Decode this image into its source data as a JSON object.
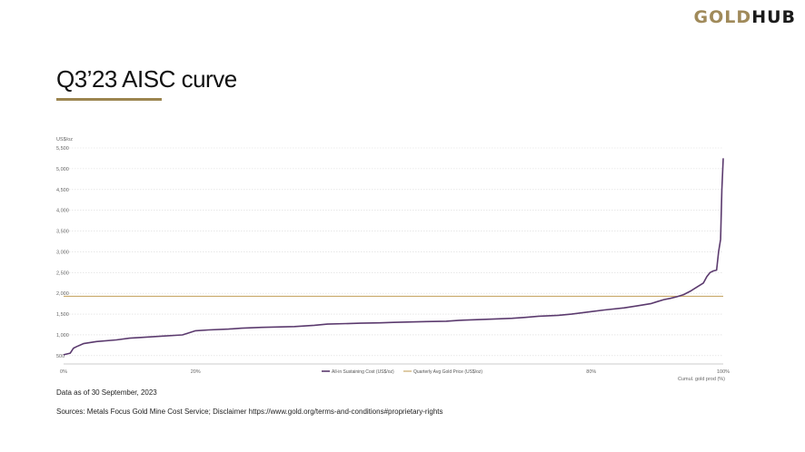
{
  "header": {
    "logo_gold": "GOLD",
    "logo_hub": "HUB",
    "title": "Q3’23 AISC curve"
  },
  "footer": {
    "data_as_of": "Data as of 30 September, 2023",
    "sources": "Sources: Metals Focus Gold Mine Cost Service; Disclaimer https://www.gold.org/terms-and-conditions#proprietary-rights"
  },
  "colors": {
    "aisc_line": "#5b3a6e",
    "gold_price_line": "#c9a96b",
    "grid": "#d9d9d9"
  },
  "chart_data": {
    "type": "line",
    "ylabel": "US$/oz",
    "xlabel": "Cumul. gold prod (%)",
    "ylim": [
      300,
      5500
    ],
    "xlim": [
      0,
      100
    ],
    "y_ticks": [
      500,
      1000,
      1500,
      2000,
      2500,
      3000,
      3500,
      4000,
      4500,
      5000,
      5500
    ],
    "y_tick_labels": [
      "500",
      "1,000",
      "1,500",
      "2,000",
      "2,500",
      "3,000",
      "3,500",
      "4,000",
      "4,500",
      "5,000",
      "5,500"
    ],
    "x_ticks": [
      0,
      20,
      40,
      60,
      80,
      100
    ],
    "x_tick_labels": [
      "0%",
      "20%",
      "",
      "",
      "80%",
      "100%"
    ],
    "grid": true,
    "legend_position": "bottom-center",
    "series": [
      {
        "name": "All-in Sustaining Cost (US$/oz)",
        "x": [
          0,
          0.5,
          1,
          1.5,
          2,
          3,
          5,
          8,
          10,
          12,
          15,
          18,
          19,
          20,
          22,
          25,
          27,
          30,
          35,
          38,
          40,
          45,
          48,
          50,
          55,
          58,
          60,
          65,
          68,
          70,
          72,
          75,
          77,
          80,
          82,
          85,
          87,
          89,
          90,
          91,
          92,
          93,
          94,
          95,
          96,
          97,
          97.5,
          98,
          98.5,
          99,
          99.3,
          99.6,
          99.8,
          100
        ],
        "y": [
          520,
          540,
          560,
          680,
          720,
          790,
          840,
          880,
          920,
          940,
          970,
          1000,
          1050,
          1100,
          1120,
          1140,
          1160,
          1180,
          1200,
          1230,
          1260,
          1280,
          1290,
          1300,
          1320,
          1330,
          1350,
          1380,
          1400,
          1420,
          1450,
          1470,
          1500,
          1560,
          1600,
          1650,
          1700,
          1750,
          1800,
          1850,
          1880,
          1920,
          1970,
          2050,
          2150,
          2250,
          2400,
          2500,
          2540,
          2560,
          3000,
          3300,
          4500,
          5250
        ]
      },
      {
        "name": "Quarterly Avg Gold Price (US$/oz)",
        "x": [
          0,
          100
        ],
        "y": [
          1930,
          1930
        ]
      }
    ]
  }
}
